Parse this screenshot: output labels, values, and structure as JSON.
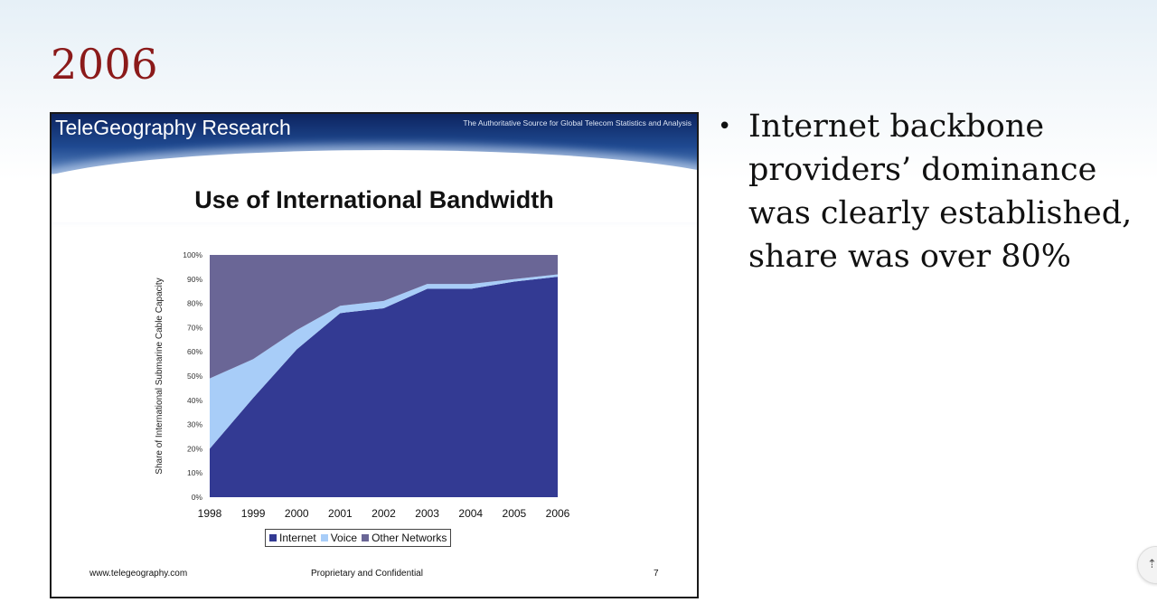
{
  "slide": {
    "title": "2006",
    "bullets": [
      "Internet backbone providers’ dominance was clearly established, share was over 80%"
    ]
  },
  "embed": {
    "brand": "TeleGeography Research",
    "tagline": "The Authoritative Source for Global Telecom Statistics and Analysis",
    "footer_left": "www.telegeography.com",
    "footer_center": "Proprietary and Confidential",
    "footer_right": "7"
  },
  "colors": {
    "internet": "#333a93",
    "voice": "#a8cdf8",
    "other": "#6a6696",
    "title_red": "#8b1a1a"
  },
  "chart_data": {
    "type": "area",
    "stacked": true,
    "title": "Use of International Bandwidth",
    "xlabel": "",
    "ylabel": "Share of International Submarine Cable Capacity",
    "x": [
      "1998",
      "1999",
      "2000",
      "2001",
      "2002",
      "2003",
      "2004",
      "2005",
      "2006"
    ],
    "ylim": [
      0,
      100
    ],
    "yticks": [
      "0%",
      "10%",
      "20%",
      "30%",
      "40%",
      "50%",
      "60%",
      "70%",
      "80%",
      "90%",
      "100%"
    ],
    "legend_position": "bottom",
    "series": [
      {
        "name": "Internet",
        "values": [
          20,
          41,
          61,
          76,
          78,
          86,
          86,
          89,
          91
        ]
      },
      {
        "name": "Voice",
        "values": [
          29,
          16,
          8,
          3,
          3,
          2,
          2,
          1,
          1
        ]
      },
      {
        "name": "Other Networks",
        "values": [
          51,
          43,
          31,
          21,
          19,
          12,
          12,
          10,
          8
        ]
      }
    ]
  }
}
